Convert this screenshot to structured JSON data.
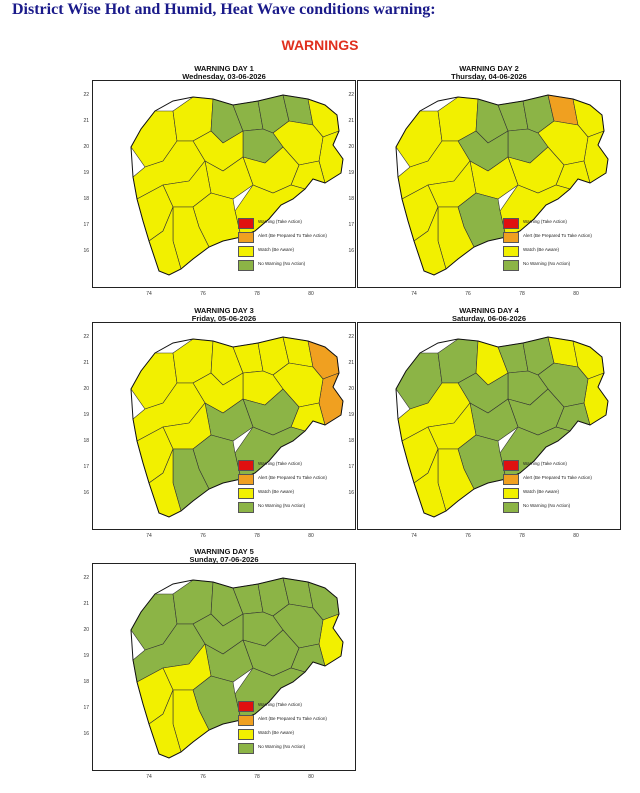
{
  "page_title": "District Wise Hot and Humid, Heat Wave conditions warning:",
  "warnings_heading": "WARNINGS",
  "colors": {
    "warning": "#e01010",
    "alert": "#f0a020",
    "watch": "#f2f000",
    "no_warning": "#8cb446",
    "heading_red": "#e0301e",
    "title_blue": "#1a1a8a"
  },
  "legend": [
    {
      "label": "Warning (Take Action)",
      "color": "#e01010"
    },
    {
      "label": "Alert (Be Prepared To Take Action)",
      "color": "#f0a020"
    },
    {
      "label": "Watch (Be Aware)",
      "color": "#f2f000"
    },
    {
      "label": "No Warning (No Action)",
      "color": "#8cb446"
    }
  ],
  "axis": {
    "y_ticks": [
      "22",
      "21",
      "20",
      "19",
      "18",
      "17",
      "16"
    ],
    "x_ticks": [
      "74",
      "76",
      "78",
      "80"
    ]
  },
  "days": [
    {
      "title": "WARNING DAY 1",
      "date": "Wednesday, 03-06-2026"
    },
    {
      "title": "WARNING DAY 2",
      "date": "Thursday, 04-06-2026"
    },
    {
      "title": "WARNING DAY 3",
      "date": "Friday, 05-06-2026"
    },
    {
      "title": "WARNING DAY 4",
      "date": "Saturday, 06-06-2026"
    },
    {
      "title": "WARNING DAY 5",
      "date": "Sunday, 07-06-2026"
    }
  ]
}
